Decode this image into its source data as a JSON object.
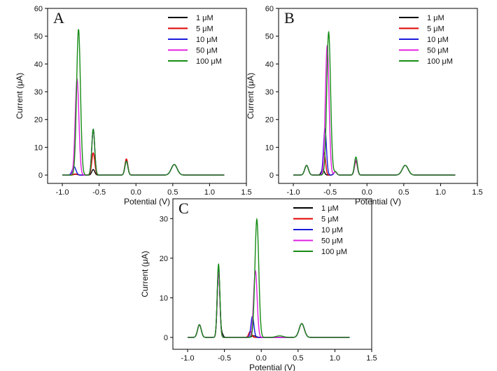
{
  "chart_data": [
    {
      "type": "line",
      "panel_label": "A",
      "xlabel": "Potential (V)",
      "ylabel": "Current (μA)",
      "xlim": [
        -1.2,
        1.5
      ],
      "ylim": [
        -3,
        60
      ],
      "xticks": [
        -1.0,
        -0.5,
        0.0,
        0.5,
        1.0,
        1.5
      ],
      "xtick_labels": [
        "-1.0",
        "-0.5",
        "0.0",
        "0.5",
        "1.0",
        "1.5"
      ],
      "yticks": [
        0,
        10,
        20,
        30,
        40,
        50,
        60
      ],
      "ytick_labels": [
        "0",
        "10",
        "20",
        "30",
        "40",
        "50",
        "60"
      ],
      "legend_position": "top-right",
      "baseline_range": [
        -1.0,
        1.2
      ],
      "series": [
        {
          "name": "1 μM",
          "color": "#000000",
          "peaks": [
            [
              -0.82,
              0.3,
              0.025
            ],
            [
              -0.58,
              2.0,
              0.02
            ],
            [
              -0.13,
              5.5,
              0.02
            ],
            [
              0.52,
              3.8,
              0.04
            ]
          ]
        },
        {
          "name": "5 μM",
          "color": "#e00000",
          "peaks": [
            [
              -0.82,
              0.4,
              0.025
            ],
            [
              -0.58,
              8.0,
              0.02
            ],
            [
              -0.13,
              5.8,
              0.02
            ],
            [
              0.52,
              3.8,
              0.04
            ]
          ]
        },
        {
          "name": "10 μM",
          "color": "#1a1adc",
          "peaks": [
            [
              -0.84,
              3.0,
              0.025
            ],
            [
              -0.58,
              16.5,
              0.02
            ],
            [
              -0.13,
              5.0,
              0.02
            ],
            [
              0.52,
              3.8,
              0.04
            ]
          ]
        },
        {
          "name": "50 μM",
          "color": "#e020e0",
          "peaks": [
            [
              -0.8,
              34.5,
              0.025
            ],
            [
              -0.58,
              16.0,
              0.02
            ],
            [
              -0.13,
              5.0,
              0.02
            ],
            [
              0.52,
              3.8,
              0.04
            ]
          ]
        },
        {
          "name": "100 μM",
          "color": "#168c16",
          "peaks": [
            [
              -0.78,
              52.5,
              0.026
            ],
            [
              -0.58,
              16.5,
              0.02
            ],
            [
              -0.13,
              5.0,
              0.02
            ],
            [
              0.52,
              3.8,
              0.04
            ]
          ]
        }
      ]
    },
    {
      "type": "line",
      "panel_label": "B",
      "xlabel": "Potential (V)",
      "ylabel": "Current (μA)",
      "xlim": [
        -1.2,
        1.5
      ],
      "ylim": [
        -3,
        60
      ],
      "xticks": [
        -1.0,
        -0.5,
        0.0,
        0.5,
        1.0,
        1.5
      ],
      "xtick_labels": [
        "-1.0",
        "-0.5",
        "0.0",
        "0.5",
        "1.0",
        "1.5"
      ],
      "yticks": [
        0,
        10,
        20,
        30,
        40,
        50,
        60
      ],
      "ytick_labels": [
        "0",
        "10",
        "20",
        "30",
        "40",
        "50",
        "60"
      ],
      "legend_position": "top-right",
      "baseline_range": [
        -1.0,
        1.2
      ],
      "series": [
        {
          "name": "1 μM",
          "color": "#000000",
          "peaks": [
            [
              -0.82,
              3.5,
              0.025
            ],
            [
              -0.6,
              2.0,
              0.02
            ],
            [
              -0.43,
              1.2,
              0.02
            ],
            [
              -0.15,
              5.0,
              0.02
            ],
            [
              0.52,
              3.5,
              0.04
            ]
          ]
        },
        {
          "name": "5 μM",
          "color": "#e00000",
          "peaks": [
            [
              -0.82,
              3.5,
              0.025
            ],
            [
              -0.58,
              8.0,
              0.018
            ],
            [
              -0.43,
              1.2,
              0.02
            ],
            [
              -0.15,
              5.0,
              0.02
            ],
            [
              0.52,
              3.5,
              0.04
            ]
          ]
        },
        {
          "name": "10 μM",
          "color": "#1a1adc",
          "peaks": [
            [
              -0.82,
              3.5,
              0.025
            ],
            [
              -0.57,
              16.5,
              0.02
            ],
            [
              -0.43,
              1.2,
              0.02
            ],
            [
              -0.15,
              5.5,
              0.02
            ],
            [
              0.52,
              3.5,
              0.04
            ]
          ]
        },
        {
          "name": "50 μM",
          "color": "#e020e0",
          "peaks": [
            [
              -0.82,
              3.5,
              0.025
            ],
            [
              -0.54,
              46.5,
              0.025
            ],
            [
              -0.43,
              1.2,
              0.02
            ],
            [
              -0.15,
              5.5,
              0.02
            ],
            [
              0.52,
              3.5,
              0.04
            ]
          ]
        },
        {
          "name": "100 μM",
          "color": "#168c16",
          "peaks": [
            [
              -0.82,
              3.5,
              0.025
            ],
            [
              -0.52,
              51.5,
              0.026
            ],
            [
              -0.43,
              1.2,
              0.02
            ],
            [
              -0.15,
              6.5,
              0.02
            ],
            [
              0.52,
              3.5,
              0.04
            ]
          ]
        }
      ]
    },
    {
      "type": "line",
      "panel_label": "C",
      "xlabel": "Potential (V)",
      "ylabel": "Current (μA)",
      "xlim": [
        -1.2,
        1.5
      ],
      "ylim": [
        -3,
        35
      ],
      "xticks": [
        -1.0,
        -0.5,
        0.0,
        0.5,
        1.0,
        1.5
      ],
      "xtick_labels": [
        "-1.0",
        "-0.5",
        "0.0",
        "0.5",
        "1.0",
        "1.5"
      ],
      "yticks": [
        0,
        10,
        20,
        30
      ],
      "ytick_labels": [
        "0",
        "10",
        "20",
        "30"
      ],
      "legend_position": "top-right",
      "baseline_range": [
        -1.0,
        1.2
      ],
      "series": [
        {
          "name": "1 μM",
          "color": "#000000",
          "peaks": [
            [
              -0.84,
              3.2,
              0.025
            ],
            [
              -0.58,
              17.0,
              0.018
            ],
            [
              -0.53,
              0.8,
              0.015
            ],
            [
              -0.1,
              0.4,
              0.03
            ],
            [
              0.55,
              3.5,
              0.035
            ]
          ]
        },
        {
          "name": "5 μM",
          "color": "#e00000",
          "peaks": [
            [
              -0.84,
              3.2,
              0.025
            ],
            [
              -0.58,
              17.0,
              0.018
            ],
            [
              -0.15,
              1.5,
              0.02
            ],
            [
              0.55,
              3.5,
              0.035
            ]
          ]
        },
        {
          "name": "10 μM",
          "color": "#1a1adc",
          "peaks": [
            [
              -0.84,
              3.2,
              0.025
            ],
            [
              -0.58,
              17.0,
              0.018
            ],
            [
              -0.12,
              5.3,
              0.02
            ],
            [
              0.55,
              3.5,
              0.035
            ]
          ]
        },
        {
          "name": "50 μM",
          "color": "#e020e0",
          "peaks": [
            [
              -0.84,
              3.2,
              0.025
            ],
            [
              -0.58,
              16.5,
              0.018
            ],
            [
              -0.08,
              16.8,
              0.024
            ],
            [
              0.55,
              3.5,
              0.035
            ]
          ]
        },
        {
          "name": "100 μM",
          "color": "#168c16",
          "peaks": [
            [
              -0.84,
              3.2,
              0.025
            ],
            [
              -0.58,
              18.5,
              0.018
            ],
            [
              -0.06,
              29.8,
              0.026
            ],
            [
              0.25,
              0.4,
              0.05
            ],
            [
              0.55,
              3.5,
              0.035
            ]
          ]
        }
      ]
    }
  ]
}
